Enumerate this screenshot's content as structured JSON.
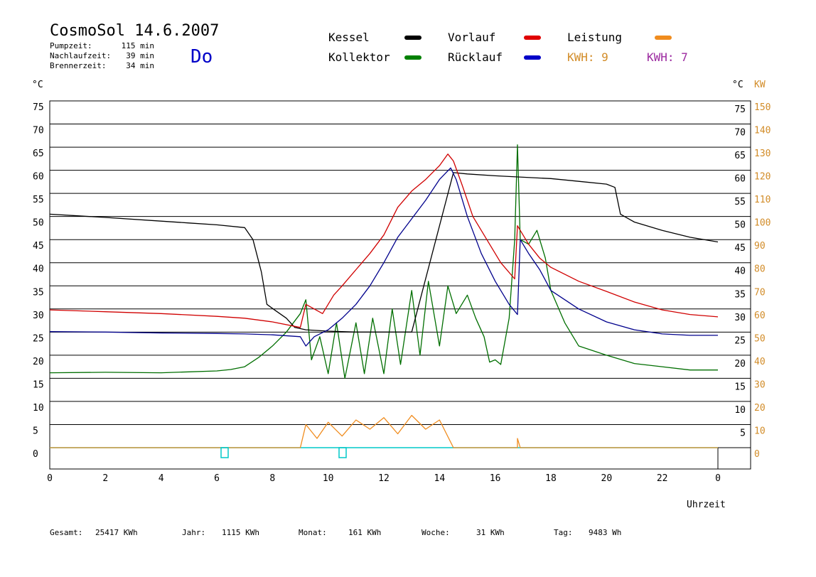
{
  "header": {
    "title": "CosmoSol 14.6.2007",
    "day": "Do",
    "stats": [
      {
        "label": "Pumpzeit:",
        "value": "115 min"
      },
      {
        "label": "Nachlaufzeit:",
        "value": "39 min"
      },
      {
        "label": "Brennerzeit:",
        "value": "34 min"
      }
    ]
  },
  "legend": {
    "items": [
      {
        "label": "Kessel",
        "color": "#000000"
      },
      {
        "label": "Vorlauf",
        "color": "#e00000"
      },
      {
        "label": "Leistung",
        "color": "#f08c1e"
      },
      {
        "label": "Kollektor",
        "color": "#008000"
      },
      {
        "label": "Rücklauf",
        "color": "#0000c8"
      }
    ],
    "kwh_left": "KWH: 9",
    "kwh_right": "KWH: 7",
    "kwh_left_color": "#d28c28",
    "kwh_right_color": "#9c2aa0"
  },
  "axes": {
    "left_unit": "°C",
    "right_unit": "°C",
    "right_unit2": "KW",
    "xlabel": "Uhrzeit",
    "left_ticks": [
      "75",
      "70",
      "65",
      "60",
      "55",
      "50",
      "45",
      "40",
      "35",
      "30",
      "25",
      "20",
      "15",
      "10",
      "5",
      "0"
    ],
    "right_ticks": [
      "75",
      "70",
      "65",
      "60",
      "55",
      "50",
      "45",
      "40",
      "35",
      "30",
      "25",
      "20",
      "15",
      "10",
      "5"
    ],
    "kw_ticks": [
      "150",
      "140",
      "130",
      "120",
      "110",
      "100",
      "90",
      "80",
      "70",
      "60",
      "50",
      "40",
      "30",
      "20",
      "10",
      "0"
    ],
    "x_ticks": [
      "0",
      "2",
      "4",
      "6",
      "8",
      "10",
      "12",
      "14",
      "16",
      "18",
      "20",
      "22",
      "0"
    ]
  },
  "footer": {
    "items": [
      {
        "label": "Gesamt:",
        "value": "25417 KWh"
      },
      {
        "label": "Jahr:",
        "value": "1115 KWh"
      },
      {
        "label": "Monat:",
        "value": "161 KWh"
      },
      {
        "label": "Woche:",
        "value": "31 KWh"
      },
      {
        "label": "Tag:",
        "value": "9483 Wh"
      }
    ]
  },
  "chart_data": {
    "type": "line",
    "x_unit": "hour of day",
    "xlim": [
      0,
      24
    ],
    "ylim": [
      0,
      75
    ],
    "y2lim": [
      0,
      150
    ],
    "grid": true,
    "series": [
      {
        "name": "Kessel",
        "color": "#000000",
        "points": [
          [
            0,
            50.5
          ],
          [
            2,
            49.8
          ],
          [
            4,
            49.0
          ],
          [
            5,
            48.6
          ],
          [
            6,
            48.2
          ],
          [
            7,
            47.6
          ],
          [
            7.3,
            45
          ],
          [
            7.6,
            38
          ],
          [
            7.8,
            31
          ],
          [
            8.1,
            29.7
          ],
          [
            8.5,
            28
          ],
          [
            8.8,
            26
          ],
          [
            9.2,
            25.5
          ],
          [
            10,
            25.2
          ],
          [
            11,
            25
          ],
          [
            12,
            25
          ],
          [
            13,
            25
          ],
          [
            14.5,
            59.5
          ],
          [
            15,
            59.2
          ],
          [
            16,
            58.8
          ],
          [
            17,
            58.5
          ],
          [
            18,
            58.2
          ],
          [
            19,
            57.6
          ],
          [
            20,
            57.0
          ],
          [
            20.3,
            56.3
          ],
          [
            20.5,
            50.5
          ],
          [
            21,
            48.8
          ],
          [
            22,
            47
          ],
          [
            23,
            45.5
          ],
          [
            24,
            44.5
          ]
        ]
      },
      {
        "name": "Vorlauf",
        "color": "#d00000",
        "points": [
          [
            0,
            29.8
          ],
          [
            2,
            29.4
          ],
          [
            4,
            29.0
          ],
          [
            6,
            28.4
          ],
          [
            7,
            28.0
          ],
          [
            8,
            27.2
          ],
          [
            9,
            26.0
          ],
          [
            9.2,
            31
          ],
          [
            9.5,
            30
          ],
          [
            9.8,
            29
          ],
          [
            10.2,
            33
          ],
          [
            10.5,
            35
          ],
          [
            11,
            38.5
          ],
          [
            11.5,
            42
          ],
          [
            12,
            46
          ],
          [
            12.5,
            52
          ],
          [
            13,
            55.5
          ],
          [
            13.5,
            58
          ],
          [
            14,
            61
          ],
          [
            14.3,
            63.5
          ],
          [
            14.5,
            62
          ],
          [
            14.8,
            57
          ],
          [
            15.2,
            50
          ],
          [
            15.7,
            45
          ],
          [
            16.2,
            40
          ],
          [
            16.7,
            36.5
          ],
          [
            16.8,
            48
          ],
          [
            17.2,
            44
          ],
          [
            17.6,
            41
          ],
          [
            18,
            39
          ],
          [
            19,
            36
          ],
          [
            20,
            33.8
          ],
          [
            21,
            31.5
          ],
          [
            22,
            29.8
          ],
          [
            23,
            28.8
          ],
          [
            24,
            28.3
          ]
        ]
      },
      {
        "name": "Rücklauf",
        "color": "#00008c",
        "points": [
          [
            0,
            25.1
          ],
          [
            2,
            25.0
          ],
          [
            4,
            24.8
          ],
          [
            6,
            24.7
          ],
          [
            7,
            24.6
          ],
          [
            8,
            24.4
          ],
          [
            9,
            24.0
          ],
          [
            9.2,
            22
          ],
          [
            9.5,
            24
          ],
          [
            10,
            25.5
          ],
          [
            10.5,
            28
          ],
          [
            11,
            31
          ],
          [
            11.5,
            35
          ],
          [
            12,
            40
          ],
          [
            12.5,
            45.5
          ],
          [
            13,
            49.5
          ],
          [
            13.5,
            53.5
          ],
          [
            14,
            58
          ],
          [
            14.4,
            60.5
          ],
          [
            14.6,
            58
          ],
          [
            15,
            50
          ],
          [
            15.5,
            42
          ],
          [
            16,
            36
          ],
          [
            16.5,
            31
          ],
          [
            16.8,
            28.8
          ],
          [
            16.9,
            45
          ],
          [
            17.2,
            42
          ],
          [
            17.6,
            38.5
          ],
          [
            18,
            34
          ],
          [
            19,
            30
          ],
          [
            20,
            27.2
          ],
          [
            21,
            25.5
          ],
          [
            22,
            24.6
          ],
          [
            23,
            24.3
          ],
          [
            24,
            24.3
          ]
        ]
      },
      {
        "name": "Kollektor",
        "color": "#006e00",
        "points": [
          [
            0,
            16.2
          ],
          [
            2,
            16.3
          ],
          [
            4,
            16.2
          ],
          [
            5,
            16.4
          ],
          [
            6,
            16.6
          ],
          [
            6.5,
            16.9
          ],
          [
            7,
            17.5
          ],
          [
            7.5,
            19.5
          ],
          [
            8,
            22
          ],
          [
            8.5,
            25
          ],
          [
            9,
            29
          ],
          [
            9.2,
            32
          ],
          [
            9.4,
            19
          ],
          [
            9.7,
            24
          ],
          [
            10,
            16
          ],
          [
            10.3,
            27
          ],
          [
            10.6,
            15
          ],
          [
            11,
            27
          ],
          [
            11.3,
            16
          ],
          [
            11.6,
            28
          ],
          [
            12,
            16
          ],
          [
            12.3,
            30
          ],
          [
            12.6,
            18
          ],
          [
            13,
            34
          ],
          [
            13.3,
            20
          ],
          [
            13.6,
            36
          ],
          [
            14,
            22
          ],
          [
            14.3,
            35
          ],
          [
            14.6,
            29
          ],
          [
            15,
            33
          ],
          [
            15.3,
            28
          ],
          [
            15.6,
            24
          ],
          [
            15.8,
            18.5
          ],
          [
            16,
            19
          ],
          [
            16.2,
            18
          ],
          [
            16.5,
            28
          ],
          [
            16.7,
            45
          ],
          [
            16.8,
            65.5
          ],
          [
            16.9,
            45
          ],
          [
            17.2,
            44
          ],
          [
            17.5,
            47
          ],
          [
            17.8,
            41
          ],
          [
            18,
            34
          ],
          [
            18.5,
            27
          ],
          [
            19,
            22
          ],
          [
            20,
            20
          ],
          [
            21,
            18.2
          ],
          [
            22,
            17.5
          ],
          [
            23,
            16.8
          ],
          [
            24,
            16.8
          ]
        ]
      },
      {
        "name": "Leistung",
        "color": "#f08c1e",
        "axis": "KW",
        "points": [
          [
            0,
            0
          ],
          [
            9,
            0
          ],
          [
            9.2,
            10
          ],
          [
            9.6,
            4
          ],
          [
            10,
            11
          ],
          [
            10.5,
            5
          ],
          [
            11,
            12
          ],
          [
            11.5,
            8
          ],
          [
            12,
            13
          ],
          [
            12.5,
            6
          ],
          [
            13,
            14
          ],
          [
            13.5,
            8
          ],
          [
            14,
            12
          ],
          [
            14.5,
            0
          ],
          [
            16.8,
            0
          ],
          [
            16.8,
            4
          ],
          [
            16.9,
            0
          ],
          [
            24,
            0
          ]
        ]
      }
    ]
  }
}
